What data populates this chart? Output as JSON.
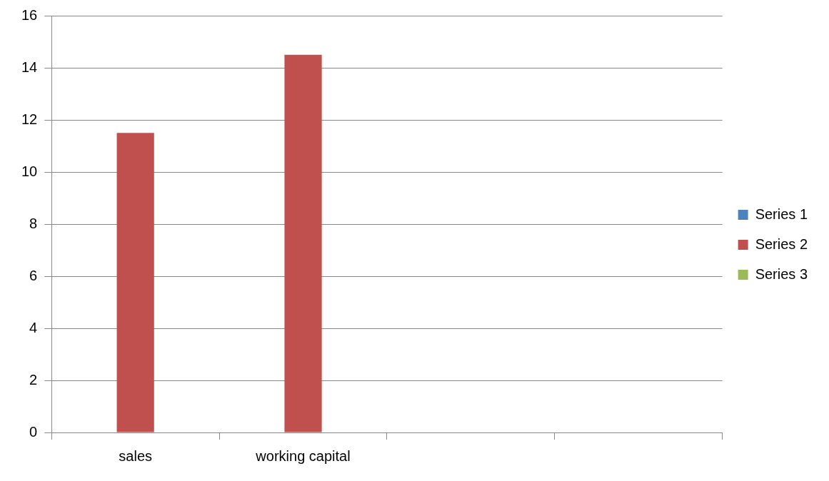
{
  "chart_data": {
    "type": "bar",
    "categories": [
      "sales",
      "working capital",
      null,
      null
    ],
    "series": [
      {
        "name": "Series 1",
        "color": "#4f81bd",
        "values": [
          null,
          null,
          null,
          null
        ]
      },
      {
        "name": "Series 2",
        "color": "#c0504d",
        "values": [
          11.5,
          14.5,
          null,
          null
        ]
      },
      {
        "name": "Series 3",
        "color": "#9bbb59",
        "values": [
          null,
          null,
          null,
          null
        ]
      }
    ],
    "ylim": [
      0,
      16
    ],
    "yticks": [
      0,
      2,
      4,
      6,
      8,
      10,
      12,
      14,
      16
    ],
    "grid": "y",
    "legend": "right"
  }
}
